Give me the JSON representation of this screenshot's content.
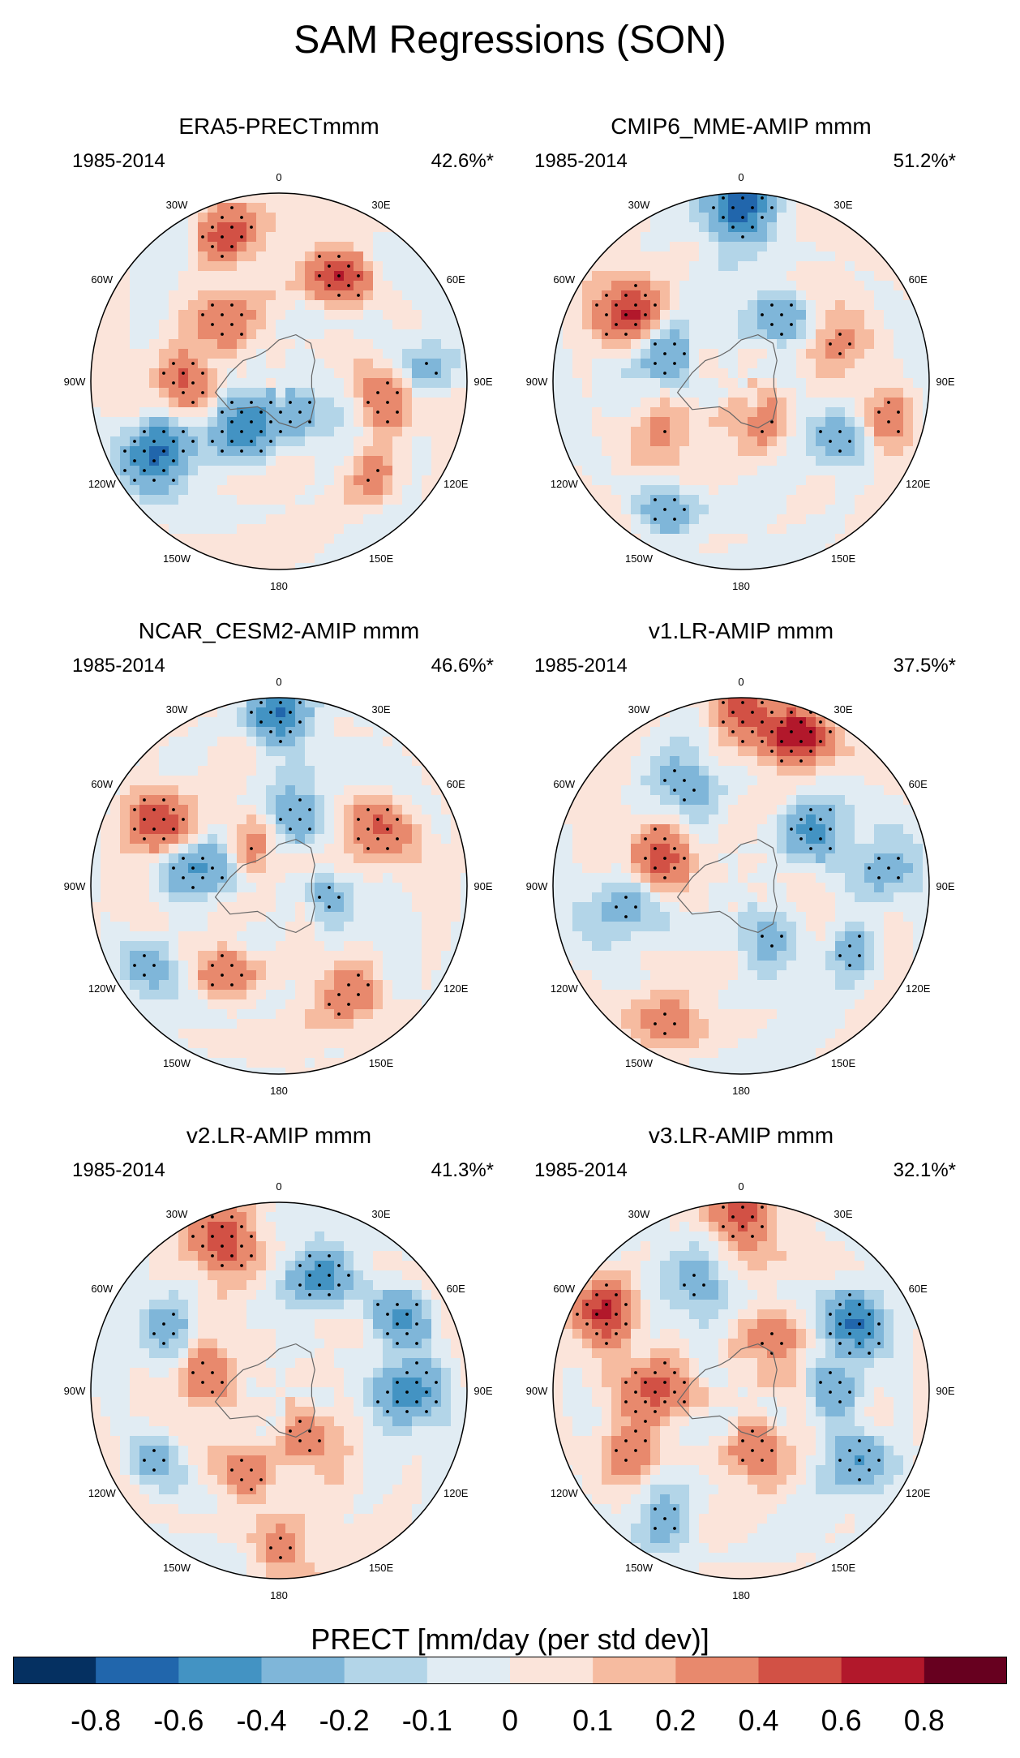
{
  "title": "SAM Regressions (SON)",
  "panels": [
    {
      "title": "ERA5-PRECTmmm",
      "period": "1985-2014",
      "percent": "42.6%*"
    },
    {
      "title": "CMIP6_MME-AMIP  mmm",
      "period": "1985-2014",
      "percent": "51.2%*"
    },
    {
      "title": "NCAR_CESM2-AMIP  mmm",
      "period": "1985-2014",
      "percent": "46.6%*"
    },
    {
      "title": "v1.LR-AMIP  mmm",
      "period": "1985-2014",
      "percent": "37.5%*"
    },
    {
      "title": "v2.LR-AMIP  mmm",
      "period": "1985-2014",
      "percent": "41.3%*"
    },
    {
      "title": "v3.LR-AMIP  mmm",
      "period": "1985-2014",
      "percent": "32.1%*"
    }
  ],
  "longitude_labels": [
    "0",
    "30E",
    "60E",
    "90E",
    "120E",
    "150E",
    "180",
    "150W",
    "120W",
    "90W",
    "60W",
    "30W"
  ],
  "colorbar": {
    "title": "PRECT [mm/day (per std dev)]",
    "labels": [
      "-0.8",
      "-0.6",
      "-0.4",
      "-0.2",
      "-0.1",
      "0",
      "0.1",
      "0.2",
      "0.4",
      "0.6",
      "0.8"
    ],
    "colors": [
      "#053061",
      "#2166ac",
      "#4393c3",
      "#7fb6d9",
      "#b3d5e8",
      "#e1ecf3",
      "#fbe4da",
      "#f6bba0",
      "#e8896d",
      "#d25145",
      "#b2182b",
      "#67001f"
    ]
  },
  "patterns": [
    [
      [
        80,
        0.6,
        0.35
      ],
      [
        225,
        0.45,
        0.45
      ],
      [
        300,
        0.75,
        -0.7
      ],
      [
        320,
        0.3,
        -0.6
      ],
      [
        150,
        0.65,
        0.6
      ],
      [
        45,
        0.72,
        0.3
      ],
      [
        95,
        0.8,
        -0.35
      ],
      [
        200,
        0.85,
        0.5
      ],
      [
        30,
        0.22,
        -0.3
      ],
      [
        270,
        0.5,
        0.35
      ]
    ],
    [
      [
        240,
        0.7,
        0.65
      ],
      [
        180,
        0.92,
        -0.75
      ],
      [
        300,
        0.5,
        0.3
      ],
      [
        250,
        0.45,
        -0.45
      ],
      [
        110,
        0.55,
        0.35
      ],
      [
        60,
        0.6,
        -0.45
      ],
      [
        330,
        0.8,
        -0.35
      ],
      [
        20,
        0.25,
        0.3
      ],
      [
        150,
        0.4,
        -0.4
      ],
      [
        75,
        0.78,
        0.35
      ]
    ],
    [
      [
        242,
        0.72,
        0.7
      ],
      [
        180,
        0.9,
        -0.65
      ],
      [
        260,
        0.45,
        -0.45
      ],
      [
        330,
        0.55,
        0.4
      ],
      [
        120,
        0.6,
        0.4
      ],
      [
        35,
        0.7,
        0.35
      ],
      [
        170,
        0.4,
        -0.35
      ],
      [
        300,
        0.8,
        -0.3
      ],
      [
        80,
        0.3,
        -0.2
      ],
      [
        210,
        0.25,
        0.2
      ]
    ],
    [
      [
        160,
        0.85,
        0.7
      ],
      [
        180,
        0.95,
        0.6
      ],
      [
        250,
        0.45,
        0.45
      ],
      [
        130,
        0.5,
        -0.45
      ],
      [
        60,
        0.7,
        -0.3
      ],
      [
        210,
        0.62,
        -0.3
      ],
      [
        280,
        0.65,
        -0.3
      ],
      [
        20,
        0.3,
        -0.25
      ],
      [
        95,
        0.75,
        -0.3
      ],
      [
        330,
        0.8,
        0.25
      ]
    ],
    [
      [
        90,
        0.7,
        -0.55
      ],
      [
        120,
        0.75,
        -0.5
      ],
      [
        200,
        0.85,
        0.55
      ],
      [
        160,
        0.65,
        -0.45
      ],
      [
        260,
        0.4,
        0.4
      ],
      [
        340,
        0.5,
        0.35
      ],
      [
        300,
        0.75,
        -0.3
      ],
      [
        30,
        0.3,
        0.3
      ],
      [
        240,
        0.7,
        -0.25
      ],
      [
        0,
        0.85,
        0.3
      ]
    ],
    [
      [
        240,
        0.85,
        0.6
      ],
      [
        180,
        0.92,
        0.5
      ],
      [
        120,
        0.7,
        -0.55
      ],
      [
        270,
        0.45,
        0.5
      ],
      [
        20,
        0.35,
        0.35
      ],
      [
        60,
        0.75,
        -0.45
      ],
      [
        300,
        0.7,
        0.4
      ],
      [
        90,
        0.5,
        -0.35
      ],
      [
        330,
        0.8,
        -0.35
      ],
      [
        200,
        0.6,
        -0.3
      ],
      [
        140,
        0.3,
        0.35
      ]
    ]
  ]
}
